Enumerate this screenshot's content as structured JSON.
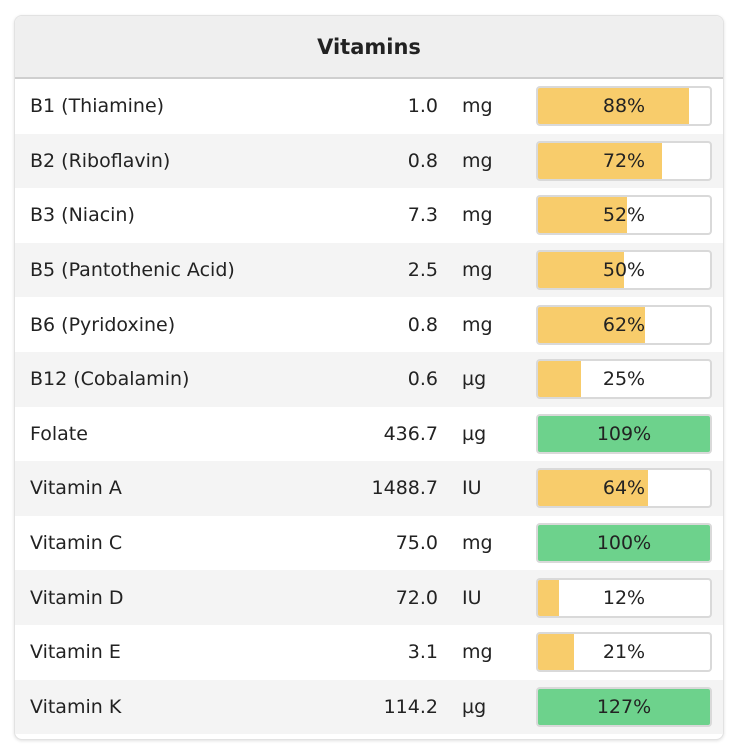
{
  "panel": {
    "title": "Vitamins"
  },
  "colors": {
    "below_target": "#f8cc6b",
    "at_or_above_target": "#6dd28c"
  },
  "vitamins": [
    {
      "name": "B1 (Thiamine)",
      "amount": "1.0",
      "unit": "mg",
      "percent_label": "88%",
      "percent": 88
    },
    {
      "name": "B2 (Riboflavin)",
      "amount": "0.8",
      "unit": "mg",
      "percent_label": "72%",
      "percent": 72
    },
    {
      "name": "B3 (Niacin)",
      "amount": "7.3",
      "unit": "mg",
      "percent_label": "52%",
      "percent": 52
    },
    {
      "name": "B5 (Pantothenic Acid)",
      "amount": "2.5",
      "unit": "mg",
      "percent_label": "50%",
      "percent": 50
    },
    {
      "name": "B6 (Pyridoxine)",
      "amount": "0.8",
      "unit": "mg",
      "percent_label": "62%",
      "percent": 62
    },
    {
      "name": "B12 (Cobalamin)",
      "amount": "0.6",
      "unit": "µg",
      "percent_label": "25%",
      "percent": 25
    },
    {
      "name": "Folate",
      "amount": "436.7",
      "unit": "µg",
      "percent_label": "109%",
      "percent": 109
    },
    {
      "name": "Vitamin A",
      "amount": "1488.7",
      "unit": "IU",
      "percent_label": "64%",
      "percent": 64
    },
    {
      "name": "Vitamin C",
      "amount": "75.0",
      "unit": "mg",
      "percent_label": "100%",
      "percent": 100
    },
    {
      "name": "Vitamin D",
      "amount": "72.0",
      "unit": "IU",
      "percent_label": "12%",
      "percent": 12
    },
    {
      "name": "Vitamin E",
      "amount": "3.1",
      "unit": "mg",
      "percent_label": "21%",
      "percent": 21
    },
    {
      "name": "Vitamin K",
      "amount": "114.2",
      "unit": "µg",
      "percent_label": "127%",
      "percent": 127
    }
  ]
}
